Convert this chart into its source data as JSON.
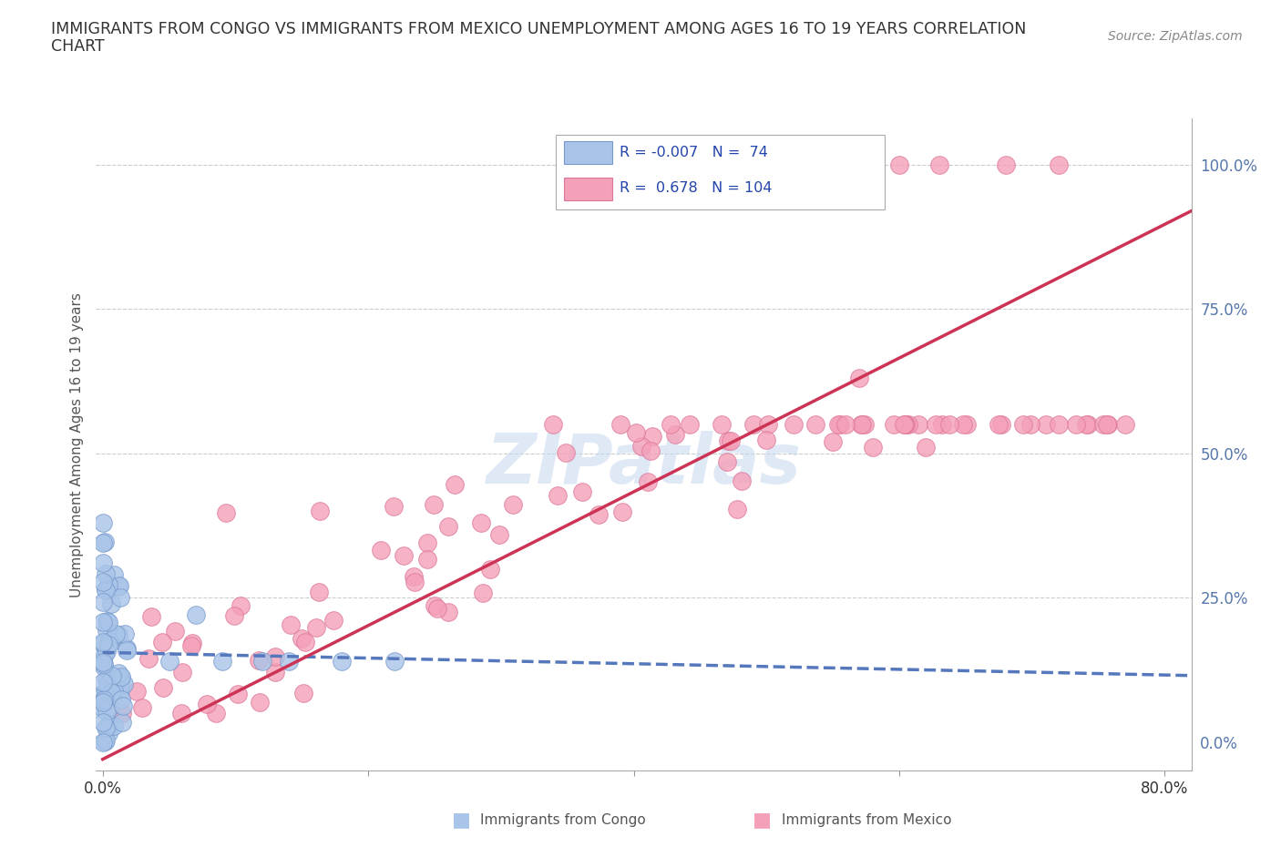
{
  "title_line1": "IMMIGRANTS FROM CONGO VS IMMIGRANTS FROM MEXICO UNEMPLOYMENT AMONG AGES 16 TO 19 YEARS CORRELATION",
  "title_line2": "CHART",
  "source_text": "Source: ZipAtlas.com",
  "ylabel": "Unemployment Among Ages 16 to 19 years",
  "xlim": [
    -0.005,
    0.82
  ],
  "ylim": [
    -0.05,
    1.08
  ],
  "yticks_right": [
    0.0,
    0.25,
    0.5,
    0.75,
    1.0
  ],
  "ytick_right_labels": [
    "0.0%",
    "25.0%",
    "50.0%",
    "75.0%",
    "100.0%"
  ],
  "watermark": "ZIPatlas",
  "legend_r_congo": "-0.007",
  "legend_n_congo": "74",
  "legend_r_mexico": "0.678",
  "legend_n_mexico": "104",
  "congo_color": "#a8c4e8",
  "mexico_color": "#f4a0b8",
  "congo_edge_color": "#7799cc",
  "mexico_edge_color": "#dd7799",
  "trend_color_blue": "#5577bb",
  "trend_color_pink": "#cc3355",
  "background_color": "#ffffff",
  "grid_color": "#cccccc",
  "axis_label_color": "#5577aa",
  "congo_trendline_x": [
    0.0,
    0.82
  ],
  "congo_trendline_y": [
    0.155,
    0.115
  ],
  "mexico_trendline_x": [
    0.0,
    0.82
  ],
  "mexico_trendline_y": [
    -0.03,
    0.92
  ]
}
